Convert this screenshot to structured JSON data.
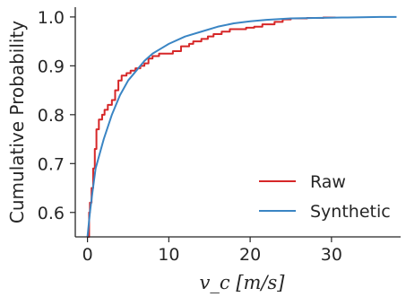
{
  "chart_data": {
    "type": "line",
    "title": "",
    "xlabel": "v_c [m/s]",
    "ylabel": "Cumulative Probability",
    "xlim": [
      -1.5,
      38.5
    ],
    "ylim": [
      0.55,
      1.02
    ],
    "xticks": [
      0,
      10,
      20,
      30
    ],
    "yticks": [
      0.6,
      0.7,
      0.8,
      0.9,
      1.0
    ],
    "xtick_labels": [
      "0",
      "10",
      "20",
      "30"
    ],
    "ytick_labels": [
      "0.6",
      "0.7",
      "0.8",
      "0.9",
      "1.0"
    ],
    "grid": false,
    "legend_position": "lower right",
    "series": [
      {
        "name": "Raw",
        "color": "#d62728",
        "style": "step",
        "x": [
          0,
          0.2,
          0.3,
          0.5,
          0.7,
          0.9,
          1.1,
          1.4,
          1.8,
          2.1,
          2.5,
          3.0,
          3.4,
          3.8,
          4.2,
          4.8,
          5.3,
          5.9,
          6.5,
          7.0,
          7.5,
          8.0,
          8.8,
          9.5,
          10.5,
          11.5,
          12.5,
          13.0,
          14.0,
          14.8,
          15.5,
          16.5,
          17.5,
          18.5,
          19.5,
          20.5,
          21.5,
          23.0,
          24.0,
          25.0,
          27.0,
          29.0,
          30.5
        ],
        "y": [
          0.55,
          0.6,
          0.62,
          0.65,
          0.69,
          0.73,
          0.77,
          0.79,
          0.8,
          0.81,
          0.82,
          0.83,
          0.85,
          0.87,
          0.88,
          0.885,
          0.89,
          0.895,
          0.9,
          0.905,
          0.915,
          0.92,
          0.925,
          0.925,
          0.93,
          0.94,
          0.945,
          0.95,
          0.955,
          0.96,
          0.965,
          0.97,
          0.975,
          0.975,
          0.978,
          0.98,
          0.985,
          0.99,
          0.995,
          0.997,
          0.998,
          0.999,
          1.0
        ]
      },
      {
        "name": "Synthetic",
        "color": "#3a85c4",
        "style": "line",
        "x": [
          0,
          0.3,
          0.6,
          1.0,
          1.5,
          2.0,
          3.0,
          4.0,
          5.0,
          6.0,
          7.0,
          8.0,
          9.0,
          10.0,
          12.0,
          14.0,
          16.0,
          18.0,
          20.0,
          22.0,
          25.0,
          28.0,
          32.0,
          36.0,
          38.0
        ],
        "y": [
          0.55,
          0.6,
          0.64,
          0.69,
          0.72,
          0.75,
          0.8,
          0.84,
          0.87,
          0.89,
          0.91,
          0.925,
          0.935,
          0.945,
          0.96,
          0.97,
          0.98,
          0.987,
          0.991,
          0.994,
          0.997,
          0.998,
          0.999,
          1.0,
          1.0
        ]
      }
    ]
  }
}
